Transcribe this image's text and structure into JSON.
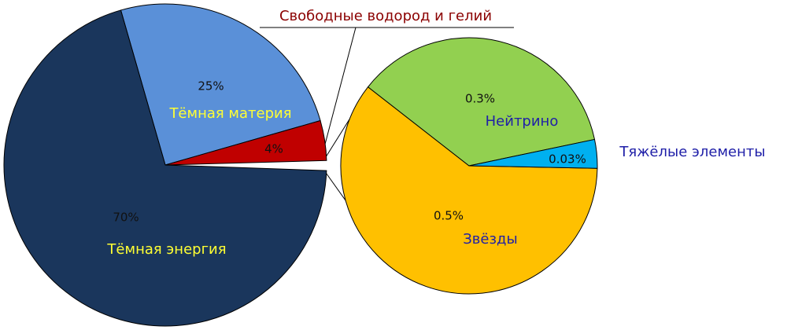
{
  "chart_data": [
    {
      "type": "pie",
      "categories": [
        "Тёмная материя",
        "Свободные водород и гелий",
        "Тёмная энергия"
      ],
      "values": [
        25,
        4,
        70
      ],
      "value_labels": [
        "25%",
        "4%",
        "70%"
      ],
      "colors": [
        "#5a90d8",
        "#c00000",
        "#1a365c"
      ]
    },
    {
      "type": "pie",
      "categories": [
        "Звёзды",
        "Нейтрино",
        "Тяжёлые элементы"
      ],
      "values": [
        0.5,
        0.3,
        0.03
      ],
      "value_labels": [
        "0.5%",
        "0.3%",
        "0.03%"
      ],
      "colors": [
        "#ffc000",
        "#92d050",
        "#00b0f0"
      ]
    }
  ]
}
